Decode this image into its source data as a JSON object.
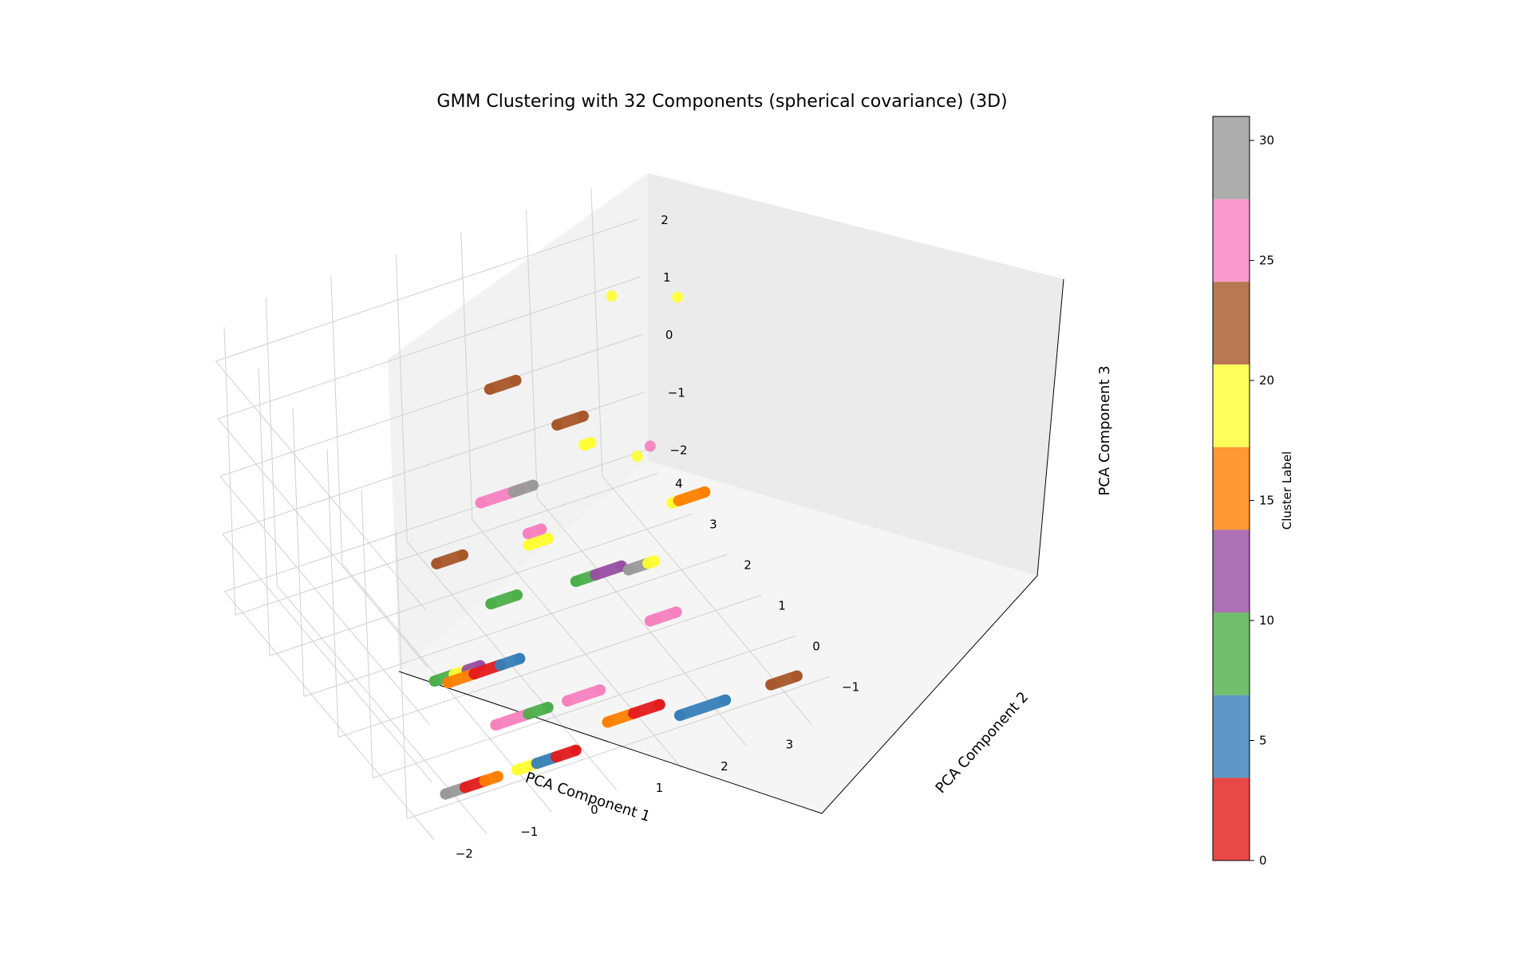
{
  "chart_data": {
    "type": "scatter",
    "projection": "3d",
    "title": "GMM Clustering with 32 Components (spherical covariance) (3D)",
    "xlabel": "PCA Component 1",
    "ylabel": "PCA Component 2",
    "zlabel": "PCA Component 3",
    "xlim": [
      -2.8,
      3.7
    ],
    "ylim": [
      -1.8,
      4.3
    ],
    "zlim": [
      -2.2,
      2.8
    ],
    "xticks": [
      "−2",
      "−1",
      "0",
      "1",
      "2",
      "3"
    ],
    "yticks": [
      "−1",
      "0",
      "1",
      "2",
      "3",
      "4"
    ],
    "zticks": [
      "−2",
      "−1",
      "0",
      "1",
      "2"
    ],
    "grid": true,
    "colorbar": {
      "label": "Cluster Label",
      "colormap": "Set1",
      "range": [
        0,
        31
      ],
      "ticks": [
        "0",
        "5",
        "10",
        "15",
        "20",
        "25",
        "30"
      ],
      "colors": [
        "#e41a1c",
        "#377eb8",
        "#4daf4a",
        "#984ea3",
        "#ff7f00",
        "#ffff33",
        "#a65628",
        "#f781bf",
        "#999999"
      ]
    },
    "clusters": [
      {
        "label": 22,
        "color": "#a65628",
        "points": [
          [
            -2.2,
            -1.0,
            2.0
          ],
          [
            -1.8,
            -1.0,
            2.0
          ]
        ]
      },
      {
        "label": 10,
        "color": "#4daf4a",
        "points": [
          [
            -1.4,
            -1.0,
            1.0
          ],
          [
            -1.0,
            -1.0,
            1.0
          ]
        ]
      },
      {
        "label": 10,
        "color": "#4daf4a",
        "points": [
          [
            -2.3,
            -1.0,
            0.0
          ],
          [
            -2.0,
            -1.0,
            0.0
          ]
        ]
      },
      {
        "label": 20,
        "color": "#ffff33",
        "points": [
          [
            -2.0,
            -1.0,
            0.0
          ],
          [
            -1.8,
            -1.0,
            0.0
          ]
        ]
      },
      {
        "label": 12,
        "color": "#984ea3",
        "points": [
          [
            -1.8,
            -1.0,
            0.0
          ],
          [
            -1.6,
            -1.0,
            0.0
          ]
        ]
      },
      {
        "label": 29,
        "color": "#999999",
        "points": [
          [
            -2.2,
            -1.0,
            -2.0
          ],
          [
            -1.9,
            -1.0,
            -2.0
          ]
        ]
      },
      {
        "label": 2,
        "color": "#e41a1c",
        "points": [
          [
            -1.9,
            -1.0,
            -2.0
          ],
          [
            -1.6,
            -1.0,
            -2.0
          ]
        ]
      },
      {
        "label": 16,
        "color": "#ff7f00",
        "points": [
          [
            -1.6,
            -1.0,
            -2.0
          ],
          [
            -1.4,
            -1.0,
            -2.0
          ]
        ]
      },
      {
        "label": 16,
        "color": "#ff7f00",
        "points": [
          [
            -1.6,
            0.0,
            -1.0
          ],
          [
            -1.2,
            0.0,
            -1.0
          ]
        ]
      },
      {
        "label": 2,
        "color": "#e41a1c",
        "points": [
          [
            -1.2,
            0.0,
            -1.0
          ],
          [
            -0.8,
            0.0,
            -1.0
          ]
        ]
      },
      {
        "label": 6,
        "color": "#377eb8",
        "points": [
          [
            -0.8,
            0.0,
            -1.0
          ],
          [
            -0.5,
            0.0,
            -1.0
          ]
        ]
      },
      {
        "label": 20,
        "color": "#ffff33",
        "points": [
          [
            -1.1,
            -1.0,
            -2.0
          ],
          [
            -0.8,
            -1.0,
            -2.0
          ]
        ]
      },
      {
        "label": 6,
        "color": "#377eb8",
        "points": [
          [
            -0.8,
            -1.0,
            -2.0
          ],
          [
            -0.5,
            -1.0,
            -2.0
          ]
        ]
      },
      {
        "label": 2,
        "color": "#e41a1c",
        "points": [
          [
            -0.5,
            -1.0,
            -2.0
          ],
          [
            -0.2,
            -1.0,
            -2.0
          ]
        ]
      },
      {
        "label": 26,
        "color": "#f781bf",
        "points": [
          [
            -0.9,
            0.0,
            -2.0
          ],
          [
            -0.4,
            0.0,
            -2.0
          ]
        ]
      },
      {
        "label": 10,
        "color": "#4daf4a",
        "points": [
          [
            -0.4,
            0.0,
            -2.0
          ],
          [
            -0.1,
            0.0,
            -2.0
          ]
        ]
      },
      {
        "label": 26,
        "color": "#f781bf",
        "points": [
          [
            0.2,
            0.0,
            -2.0
          ],
          [
            0.7,
            0.0,
            -2.0
          ]
        ]
      },
      {
        "label": 16,
        "color": "#ff7f00",
        "points": [
          [
            0.3,
            -1.0,
            -1.7
          ],
          [
            0.7,
            -1.0,
            -1.7
          ]
        ]
      },
      {
        "label": 2,
        "color": "#e41a1c",
        "points": [
          [
            0.7,
            -1.0,
            -1.7
          ],
          [
            1.1,
            -1.0,
            -1.7
          ]
        ]
      },
      {
        "label": 6,
        "color": "#377eb8",
        "points": [
          [
            1.4,
            -1.0,
            -2.0
          ],
          [
            2.1,
            -1.0,
            -2.0
          ]
        ]
      },
      {
        "label": 22,
        "color": "#a65628",
        "points": [
          [
            2.8,
            -1.0,
            -2.0
          ],
          [
            3.2,
            -1.0,
            -2.0
          ]
        ]
      },
      {
        "label": 26,
        "color": "#f781bf",
        "points": [
          [
            -0.5,
            1.0,
            1.0
          ],
          [
            0.1,
            1.0,
            1.0
          ]
        ]
      },
      {
        "label": 29,
        "color": "#999999",
        "points": [
          [
            0.0,
            1.0,
            1.0
          ],
          [
            0.3,
            1.0,
            1.0
          ]
        ]
      },
      {
        "label": 10,
        "color": "#4daf4a",
        "points": [
          [
            0.4,
            0.0,
            0.0
          ],
          [
            0.7,
            0.0,
            0.0
          ]
        ]
      },
      {
        "label": 12,
        "color": "#984ea3",
        "points": [
          [
            0.7,
            0.0,
            0.0
          ],
          [
            1.1,
            0.0,
            0.0
          ]
        ]
      },
      {
        "label": 22,
        "color": "#a65628",
        "points": [
          [
            0.2,
            2.0,
            2.0
          ],
          [
            0.6,
            2.0,
            2.0
          ]
        ]
      },
      {
        "label": 22,
        "color": "#a65628",
        "points": [
          [
            1.2,
            2.0,
            1.0
          ],
          [
            1.6,
            2.0,
            1.0
          ]
        ]
      },
      {
        "label": 29,
        "color": "#999999",
        "points": [
          [
            1.7,
            1.0,
            -1.0
          ],
          [
            2.0,
            1.0,
            -1.0
          ]
        ]
      },
      {
        "label": 20,
        "color": "#ffff33",
        "points": [
          [
            2.0,
            1.0,
            -1.0
          ],
          [
            2.1,
            1.0,
            -1.0
          ]
        ]
      },
      {
        "label": 20,
        "color": "#ffff33",
        "points": [
          [
            2.9,
            2.0,
            -1.0
          ],
          [
            3.1,
            2.0,
            -1.0
          ]
        ]
      },
      {
        "label": 16,
        "color": "#ff7f00",
        "points": [
          [
            3.0,
            2.0,
            -1.0
          ],
          [
            3.4,
            2.0,
            -1.0
          ]
        ]
      },
      {
        "label": 26,
        "color": "#f781bf",
        "points": [
          [
            2.0,
            1.0,
            -2.0
          ],
          [
            2.1,
            1.0,
            -2.0
          ],
          [
            2.4,
            1.0,
            -2.0
          ]
        ]
      },
      {
        "label": 20,
        "color": "#ffff33",
        "points": [
          [
            0.2,
            1.0,
            0.0
          ],
          [
            0.5,
            1.0,
            0.0
          ]
        ]
      },
      {
        "label": 26,
        "color": "#f781bf",
        "points": [
          [
            0.2,
            1.0,
            0.2
          ],
          [
            0.4,
            1.0,
            0.2
          ]
        ]
      },
      {
        "label": 20,
        "color": "#ffff33",
        "points": [
          [
            1.6,
            2.0,
            0.5
          ],
          [
            1.7,
            2.0,
            0.5
          ]
        ]
      },
      {
        "label": 20,
        "color": "#ffff33",
        "points": [
          [
            2.6,
            3.0,
            2.0
          ]
        ]
      },
      {
        "label": 20,
        "color": "#ffff33",
        "points": [
          [
            3.6,
            3.0,
            1.6
          ]
        ]
      },
      {
        "label": 20,
        "color": "#ffff33",
        "points": [
          [
            2.4,
            2.0,
            0.0
          ]
        ]
      },
      {
        "label": 26,
        "color": "#f781bf",
        "points": [
          [
            2.6,
            2.0,
            0.1
          ]
        ]
      }
    ]
  }
}
